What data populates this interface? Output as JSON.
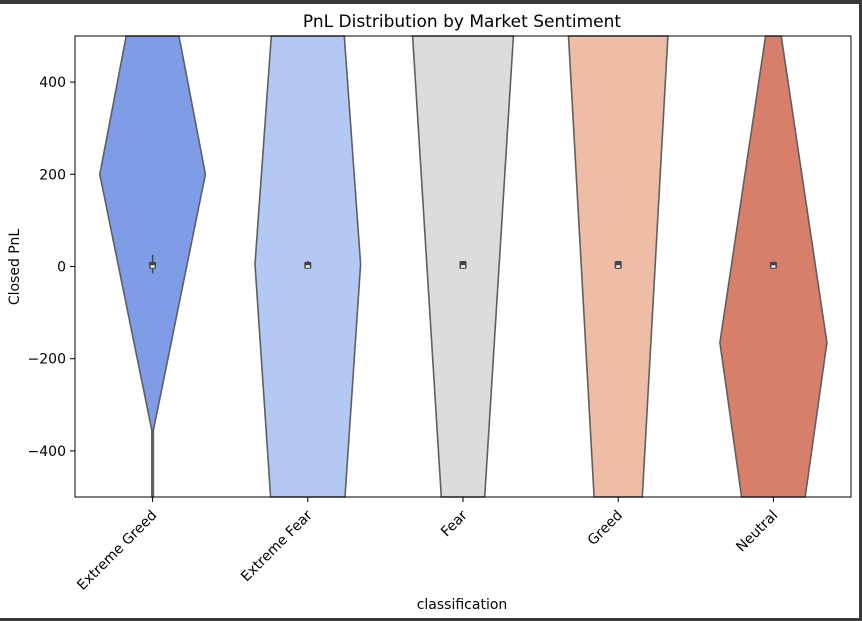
{
  "chart_data": {
    "type": "violin",
    "title": "PnL Distribution by Market Sentiment",
    "xlabel": "classification",
    "ylabel": "Closed PnL",
    "ylim": [
      -500,
      500
    ],
    "yticks": [
      400,
      200,
      0,
      -200,
      -400
    ],
    "ytick_labels": [
      "400",
      "200",
      "0",
      "−200",
      "−400"
    ],
    "categories": [
      "Extreme Greed",
      "Extreme Fear",
      "Fear",
      "Greed",
      "Neutral"
    ],
    "colors": [
      "#7f9ce6",
      "#b3c9f4",
      "#dcdcdc",
      "#edbda6",
      "#d87f6b"
    ],
    "violins": [
      {
        "name": "Extreme Greed",
        "profile": [
          [
            -500,
            0.01
          ],
          [
            -355,
            0.01
          ],
          [
            200,
            0.68
          ],
          [
            500,
            0.34
          ]
        ],
        "box": {
          "q1": -5,
          "q3": 10,
          "whisker_low": -15,
          "whisker_high": 25,
          "median": 0
        }
      },
      {
        "name": "Extreme Fear",
        "profile": [
          [
            -500,
            0.48
          ],
          [
            5,
            0.68
          ],
          [
            500,
            0.47
          ]
        ],
        "box": {
          "q1": -5,
          "q3": 10,
          "whisker_low": -5,
          "whisker_high": 12,
          "median": 0
        }
      },
      {
        "name": "Fear",
        "profile": [
          [
            -500,
            0.28
          ],
          [
            500,
            0.65
          ]
        ],
        "box": {
          "q1": -5,
          "q3": 12,
          "whisker_low": -5,
          "whisker_high": 12,
          "median": 0
        }
      },
      {
        "name": "Greed",
        "profile": [
          [
            -500,
            0.31
          ],
          [
            500,
            0.64
          ]
        ],
        "box": {
          "q1": -5,
          "q3": 12,
          "whisker_low": -5,
          "whisker_high": 12,
          "median": 0
        }
      },
      {
        "name": "Neutral",
        "profile": [
          [
            -500,
            0.41
          ],
          [
            -165,
            0.69
          ],
          [
            500,
            0.1
          ]
        ],
        "box": {
          "q1": -5,
          "q3": 10,
          "whisker_low": -5,
          "whisker_high": 10,
          "median": 0
        }
      }
    ]
  }
}
